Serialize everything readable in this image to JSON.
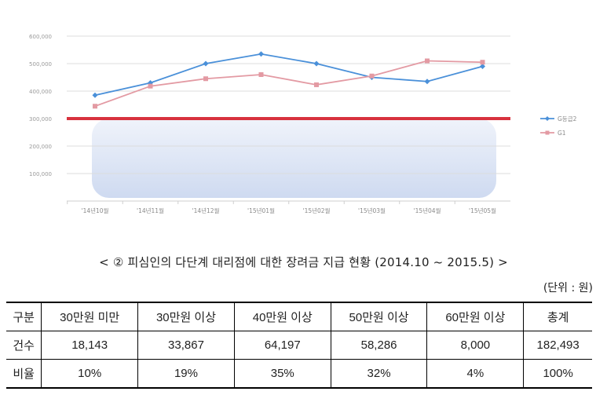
{
  "chart_data": {
    "type": "line",
    "categories": [
      "'14년10월",
      "'14년11월",
      "'14년12월",
      "'15년01월",
      "'15년02월",
      "'15년03월",
      "'15년04월",
      "'15년05월"
    ],
    "ylim": [
      0,
      600000
    ],
    "yticks": [
      {
        "value": 100000,
        "label": "100,000"
      },
      {
        "value": 200000,
        "label": "200,000"
      },
      {
        "value": 300000,
        "label": "300,000"
      },
      {
        "value": 400000,
        "label": "400,000"
      },
      {
        "value": 500000,
        "label": "500,000"
      },
      {
        "value": 600000,
        "label": "600,000"
      }
    ],
    "reference_line": {
      "value": 300000,
      "color": "#d8323e"
    },
    "grid": true,
    "legend_position": "right",
    "series": [
      {
        "name": "G등급2",
        "color": "#4a90d9",
        "marker": "diamond",
        "values": [
          385000,
          430000,
          500000,
          535000,
          500000,
          450000,
          435000,
          490000
        ]
      },
      {
        "name": "G1",
        "color": "#e39aa3",
        "marker": "square",
        "values": [
          345000,
          418000,
          445000,
          460000,
          423000,
          455000,
          510000,
          505000
        ]
      }
    ]
  },
  "caption": "< ② 피심인의 다단계 대리점에 대한 장려금 지급 현황 (2014.10 ~ 2015.5) >",
  "unit_label": "(단위 : 원)",
  "table": {
    "header": [
      "구분",
      "30만원 미만",
      "30만원 이상",
      "40만원 이상",
      "50만원 이상",
      "60만원 이상",
      "총계"
    ],
    "rows": [
      [
        "건수",
        "18,143",
        "33,867",
        "64,197",
        "58,286",
        "8,000",
        "182,493"
      ],
      [
        "비율",
        "10%",
        "19%",
        "35%",
        "32%",
        "4%",
        "100%"
      ]
    ]
  }
}
